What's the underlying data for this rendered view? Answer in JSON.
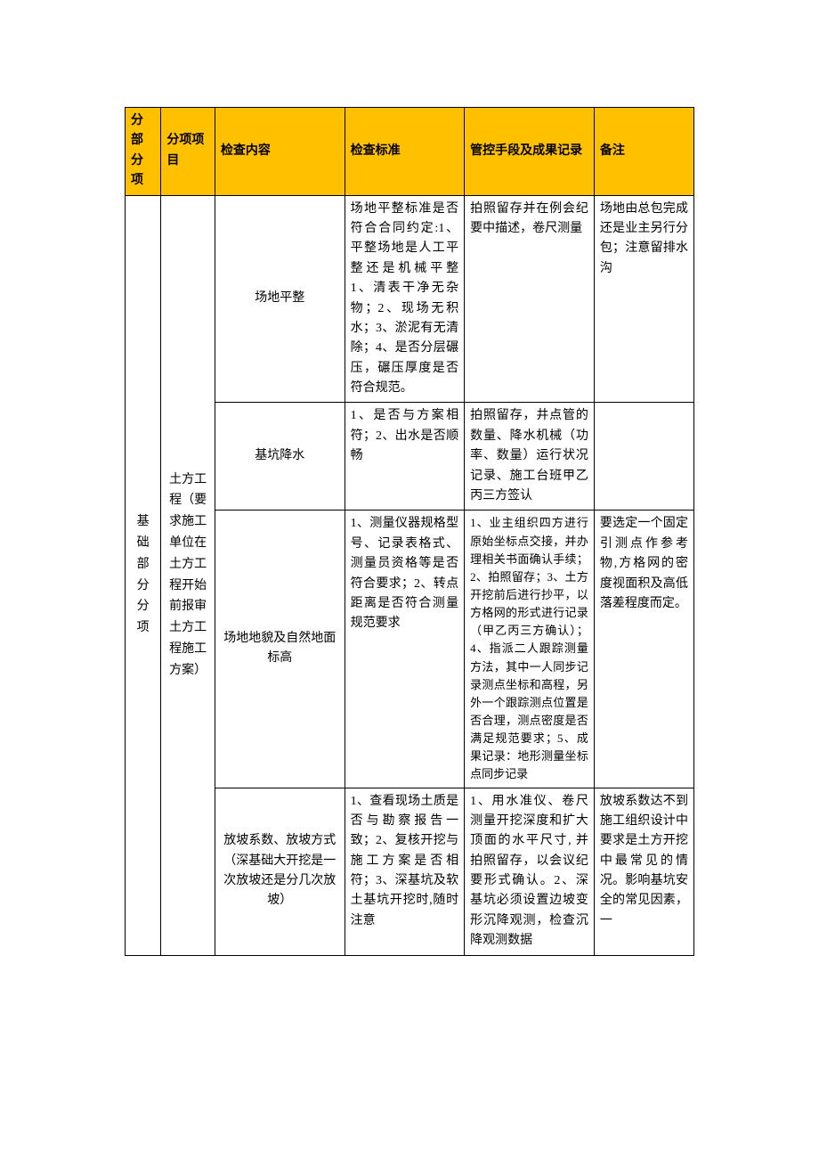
{
  "header": {
    "col1": "分部分项",
    "col2": "分项项目",
    "col3": "检查内容",
    "col4": "检查标准",
    "col5": "管控手段及成果记录",
    "col6": "备注"
  },
  "colors": {
    "header_bg": "#ffc000",
    "border": "#000000",
    "text": "#000000",
    "page_bg": "#ffffff"
  },
  "fenbu": "基础部分分项",
  "fenxiang": "土方工程（要求施工单位在土方工程开始前报审土方工程施工方案）",
  "rows": [
    {
      "jiancha": "场地平整",
      "biaozhun": "场地平整标准是否符合合同约定:1、平整场地是人工平整还是机械平整 1、清表干净无杂物；2、现场无积水；3、淤泥有无清除；4、是否分层碾压，碾压厚度是否符合规范。",
      "guankong": "拍照留存并在例会纪要中描述，卷尺测量",
      "beizhu": "场地由总包完成还是业主另行分包；注意留排水沟"
    },
    {
      "jiancha": "基坑降水",
      "biaozhun": "1、是否与方案相符；2、出水是否顺畅",
      "guankong": "拍照留存，井点管的数量、降水机械（功率、数量）运行状况记录、施工台班甲乙丙三方签认",
      "beizhu": ""
    },
    {
      "jiancha": "场地地貌及自然地面标高",
      "biaozhun": "1、测量仪器规格型号、记录表格式、测量员资格等是否符合要求；2、转点距离是否符合测量规范要求",
      "guankong": "1、业主组织四方进行原始坐标点交接，并办理相关书面确认手续；2、拍照留存；3、土方开挖前后进行抄平，以方格网的形式进行记录（甲乙丙三方确认）；4、指派二人跟踪测量方法，其中一人同步记录测点坐标和高程，另外一个跟踪测点位置是否合理，测点密度是否满足规范要求；5、成果记录：地形测量坐标点同步记录",
      "beizhu": "要选定一个固定引测点作参考物,方格网的密度视面积及高低落差程度而定。"
    },
    {
      "jiancha": "放坡系数、放坡方式（深基础大开挖是一次放坡还是分几次放坡）",
      "biaozhun": "1、查看现场土质是否与勘察报告一致；2、复核开挖与施工方案是否相符；3、深基坑及软土基坑开挖时,随时注意",
      "guankong": "1、用水准仪、卷尺测量开挖深度和扩大顶面的水平尺寸, 并拍照留存，以会议纪要形式确认。2、深基坑必须设置边坡变形沉降观测，检查沉降观测数据",
      "beizhu": "放坡系数达不到施工组织设计中要求是土方开挖中最常见的情况。影响基坑安全的常见因素，一"
    }
  ]
}
